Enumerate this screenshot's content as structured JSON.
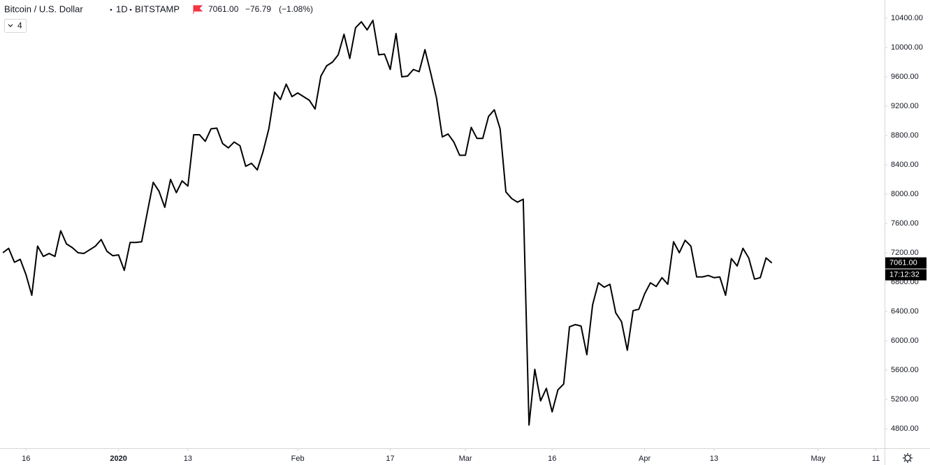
{
  "chart_data": {
    "type": "line",
    "header": {
      "title": "Bitcoin / U.S. Dollar",
      "interval": "1D",
      "exchange": "BITSTAMP",
      "last": "7061.00",
      "change": "−76.79",
      "change_percent": "(−1.08%)",
      "indicators": "4"
    },
    "price_label": "7061.00",
    "countdown": "17:12:32",
    "categories": [
      null,
      null,
      null,
      null,
      "16",
      null,
      null,
      null,
      null,
      null,
      null,
      null,
      null,
      null,
      null,
      null,
      null,
      null,
      null,
      null,
      "2020",
      null,
      null,
      null,
      null,
      null,
      null,
      null,
      null,
      null,
      null,
      null,
      "13",
      null,
      null,
      null,
      null,
      null,
      null,
      null,
      null,
      null,
      null,
      null,
      null,
      null,
      null,
      null,
      null,
      null,
      null,
      "Feb",
      null,
      null,
      null,
      null,
      null,
      null,
      null,
      null,
      null,
      null,
      null,
      null,
      null,
      null,
      null,
      "17",
      null,
      null,
      null,
      null,
      null,
      null,
      null,
      null,
      null,
      null,
      null,
      null,
      "Mar",
      null,
      null,
      null,
      null,
      null,
      null,
      null,
      null,
      null,
      null,
      null,
      null,
      null,
      null,
      "16",
      null,
      null,
      null,
      null,
      null,
      null,
      null,
      null,
      null,
      null,
      null,
      null,
      null,
      null,
      null,
      "Apr",
      null,
      null,
      null,
      null,
      null,
      null,
      null,
      null,
      null,
      null,
      null,
      "13",
      null,
      null,
      null,
      null,
      null,
      null,
      null,
      null,
      null,
      null,
      null,
      null,
      null,
      null,
      null,
      null,
      null,
      "May",
      null,
      null,
      null,
      null,
      null,
      null,
      null,
      null,
      null,
      "11",
      null
    ],
    "series": [
      {
        "color": "#000000",
        "values": [
          7200,
          7260,
          7070,
          7110,
          6900,
          6620,
          7290,
          7150,
          7190,
          7150,
          7500,
          7320,
          7270,
          7200,
          7190,
          7240,
          7290,
          7380,
          7220,
          7160,
          7170,
          6960,
          7340,
          7340,
          7350,
          7760,
          8160,
          8040,
          7820,
          8200,
          8020,
          8180,
          8110,
          8810,
          8810,
          8720,
          8890,
          8900,
          8690,
          8630,
          8710,
          8660,
          8380,
          8420,
          8330,
          8580,
          8890,
          9390,
          9290,
          9500,
          9330,
          9380,
          9330,
          9280,
          9160,
          9610,
          9750,
          9800,
          9900,
          10180,
          9850,
          10270,
          10350,
          10240,
          10370,
          9900,
          9910,
          9700,
          10190,
          9600,
          9610,
          9700,
          9670,
          9970,
          9650,
          9310,
          8780,
          8820,
          8710,
          8530,
          8530,
          8910,
          8760,
          8760,
          9060,
          9150,
          8890,
          8030,
          7940,
          7890,
          7930,
          4850,
          5610,
          5180,
          5350,
          5030,
          5330,
          5410,
          6190,
          6220,
          6200,
          5810,
          6490,
          6790,
          6730,
          6770,
          6380,
          6260,
          5870,
          6410,
          6430,
          6640,
          6790,
          6740,
          6860,
          6770,
          7350,
          7200,
          7370,
          7290,
          6870,
          6870,
          6890,
          6860,
          6870,
          6620,
          7120,
          7020,
          7260,
          7130,
          6840,
          6860,
          7130,
          7061,
          null,
          null,
          null,
          null,
          null,
          null,
          null,
          null,
          null,
          null,
          null,
          null,
          null,
          null,
          null,
          null,
          null,
          null,
          null
        ]
      }
    ],
    "ylim": [
      4533.3,
      10647.6
    ],
    "yticks": [
      {
        "value": 4800,
        "label": "4800.00"
      },
      {
        "value": 5200,
        "label": "5200.00"
      },
      {
        "value": 5600,
        "label": "5600.00"
      },
      {
        "value": 6000,
        "label": "6000.00"
      },
      {
        "value": 6400,
        "label": "6400.00"
      },
      {
        "value": 6800,
        "label": "6800.00"
      },
      {
        "value": 7200,
        "label": "7200.00"
      },
      {
        "value": 7600,
        "label": "7600.00"
      },
      {
        "value": 8000,
        "label": "8000.00"
      },
      {
        "value": 8400,
        "label": "8400.00"
      },
      {
        "value": 8800,
        "label": "8800.00"
      },
      {
        "value": 9200,
        "label": "9200.00"
      },
      {
        "value": 9600,
        "label": "9600.00"
      },
      {
        "value": 10000,
        "label": "10000.00"
      },
      {
        "value": 10400,
        "label": "10400.00"
      }
    ],
    "grid": false
  }
}
